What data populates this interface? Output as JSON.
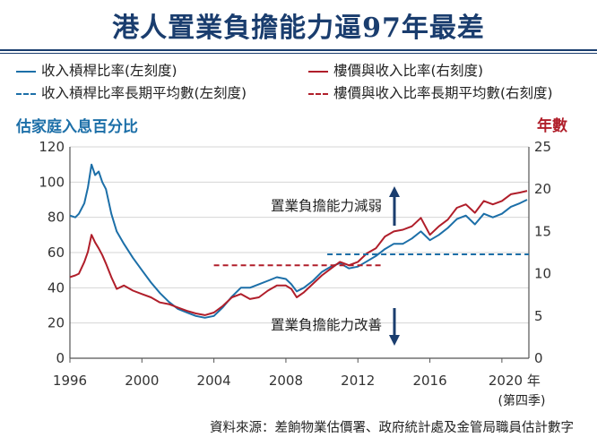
{
  "title": "港人置業負擔能力逼97年最差",
  "source": "資料來源：差餉物業估價署、政府統計處及金管局職員估計數字",
  "colors": {
    "blue": "#1c6fa8",
    "red": "#b01e2a",
    "title": "#1a3d6e"
  },
  "chart_data": {
    "type": "line",
    "title": "港人置業負擔能力逼97年最差",
    "y_left_title": "估家庭入息百分比",
    "y_right_title": "年數",
    "x_ticks": [
      "1996",
      "2000",
      "2004",
      "2008",
      "2012",
      "2016",
      "2020 年"
    ],
    "x_tick_values": [
      1996,
      2000,
      2004,
      2008,
      2012,
      2016,
      2020
    ],
    "x_note": "(第四季)",
    "xlim": [
      1996,
      2021.5
    ],
    "ylim_left": [
      0,
      120
    ],
    "ylim_right": [
      0,
      25
    ],
    "y_left_ticks": [
      0,
      20,
      40,
      60,
      80,
      100,
      120
    ],
    "y_right_ticks": [
      0,
      5,
      10,
      15,
      20,
      25
    ],
    "annotation_up": "置業負擔能力減弱",
    "annotation_down": "置業負擔能力改善",
    "series": [
      {
        "name": "收入槓桿比率(左刻度)",
        "axis": "left",
        "style": "solid",
        "color": "#1c6fa8",
        "x": [
          1996,
          1996.3,
          1996.5,
          1996.8,
          1997.0,
          1997.2,
          1997.4,
          1997.6,
          1997.8,
          1998.0,
          1998.3,
          1998.6,
          1999.0,
          1999.5,
          2000,
          2000.5,
          2001,
          2001.5,
          2002,
          2002.5,
          2003,
          2003.5,
          2004,
          2004.5,
          2005,
          2005.5,
          2006,
          2006.5,
          2007,
          2007.5,
          2008,
          2008.3,
          2008.6,
          2009,
          2009.5,
          2010,
          2010.5,
          2011,
          2011.5,
          2012,
          2012.5,
          2013,
          2013.5,
          2014,
          2014.5,
          2015,
          2015.5,
          2016,
          2016.5,
          2017,
          2017.5,
          2018,
          2018.5,
          2019,
          2019.5,
          2020,
          2020.5,
          2021,
          2021.4
        ],
        "y": [
          81,
          80,
          82,
          88,
          97,
          110,
          104,
          106,
          100,
          96,
          82,
          72,
          65,
          57,
          50,
          43,
          37,
          32,
          28,
          26,
          24,
          23,
          24,
          29,
          35,
          40,
          40,
          42,
          44,
          46,
          45,
          42,
          38,
          40,
          44,
          49,
          52,
          54,
          51,
          52,
          55,
          58,
          62,
          65,
          65,
          68,
          72,
          67,
          70,
          74,
          79,
          81,
          76,
          82,
          80,
          82,
          86,
          88,
          90
        ]
      },
      {
        "name": "樓價與收入比率(右刻度)",
        "axis": "right",
        "style": "solid",
        "color": "#b01e2a",
        "x": [
          1996,
          1996.3,
          1996.5,
          1996.8,
          1997.0,
          1997.2,
          1997.4,
          1997.6,
          1997.8,
          1998.0,
          1998.3,
          1998.6,
          1999.0,
          1999.5,
          2000,
          2000.5,
          2001,
          2001.5,
          2002,
          2002.5,
          2003,
          2003.5,
          2004,
          2004.5,
          2005,
          2005.5,
          2006,
          2006.5,
          2007,
          2007.5,
          2008,
          2008.3,
          2008.6,
          2009,
          2009.5,
          2010,
          2010.5,
          2011,
          2011.5,
          2012,
          2012.5,
          2013,
          2013.5,
          2014,
          2014.5,
          2015,
          2015.5,
          2016,
          2016.5,
          2017,
          2017.5,
          2018,
          2018.5,
          2019,
          2019.5,
          2020,
          2020.5,
          2021,
          2021.4
        ],
        "y": [
          9.6,
          9.8,
          10.0,
          11.4,
          12.6,
          14.6,
          13.7,
          13.0,
          12.2,
          11.2,
          9.6,
          8.2,
          8.6,
          8.0,
          7.6,
          7.2,
          6.6,
          6.4,
          6.0,
          5.6,
          5.3,
          5.1,
          5.4,
          6.2,
          7.2,
          7.6,
          7.0,
          7.2,
          8.0,
          8.6,
          8.6,
          8.2,
          7.2,
          7.8,
          8.8,
          9.8,
          10.6,
          11.4,
          11.0,
          11.4,
          12.4,
          13.0,
          14.4,
          15.0,
          15.2,
          15.6,
          16.6,
          14.6,
          15.6,
          16.4,
          17.8,
          18.2,
          17.2,
          18.6,
          18.2,
          18.6,
          19.4,
          19.6,
          19.8
        ]
      },
      {
        "name": "收入槓桿比率長期平均數(左刻度)",
        "axis": "left",
        "style": "dashed",
        "color": "#1c6fa8",
        "x": [
          2010.3,
          2021.5
        ],
        "y": [
          59,
          59
        ]
      },
      {
        "name": "樓價與收入比率長期平均數(右刻度)",
        "axis": "right",
        "style": "dashed",
        "color": "#b01e2a",
        "x": [
          2004,
          2013.3
        ],
        "y": [
          11,
          11
        ]
      }
    ]
  }
}
